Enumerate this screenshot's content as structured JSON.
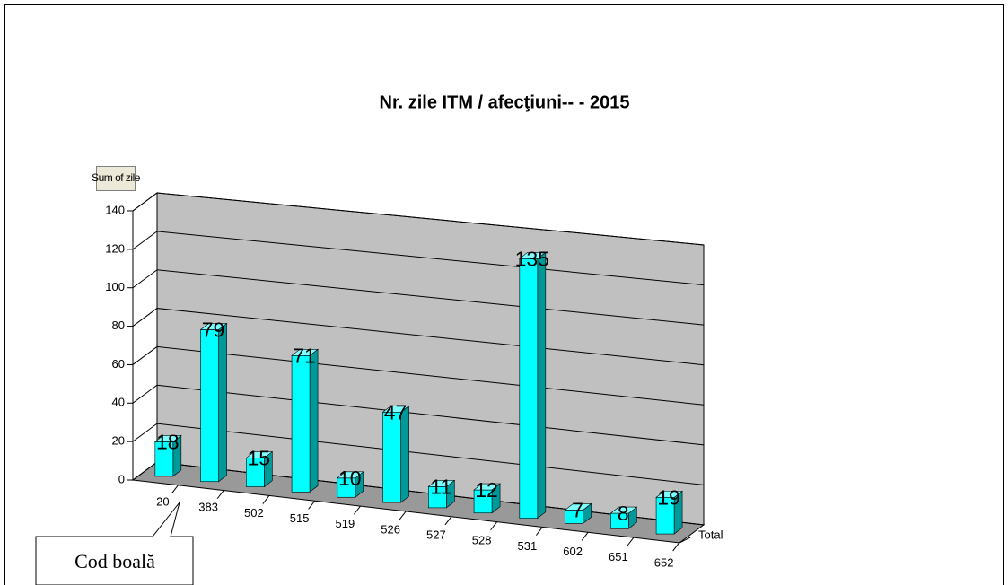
{
  "chart_data": {
    "type": "bar3d",
    "title": "Nr. zile ITM / afecţiuni-- - 2015",
    "field_button": "Sum of zile",
    "x_label": "Cod boală",
    "categories": [
      "20",
      "383",
      "502",
      "515",
      "519",
      "526",
      "527",
      "528",
      "531",
      "602",
      "651",
      "652"
    ],
    "series": [
      {
        "name": "Total",
        "color": "#00ffff",
        "values": [
          18,
          79,
          15,
          71,
          10,
          47,
          11,
          12,
          135,
          7,
          8,
          19
        ]
      }
    ],
    "ylim": [
      0,
      140
    ],
    "yticks": [
      0,
      20,
      40,
      60,
      80,
      100,
      120,
      140
    ],
    "grid": true
  }
}
